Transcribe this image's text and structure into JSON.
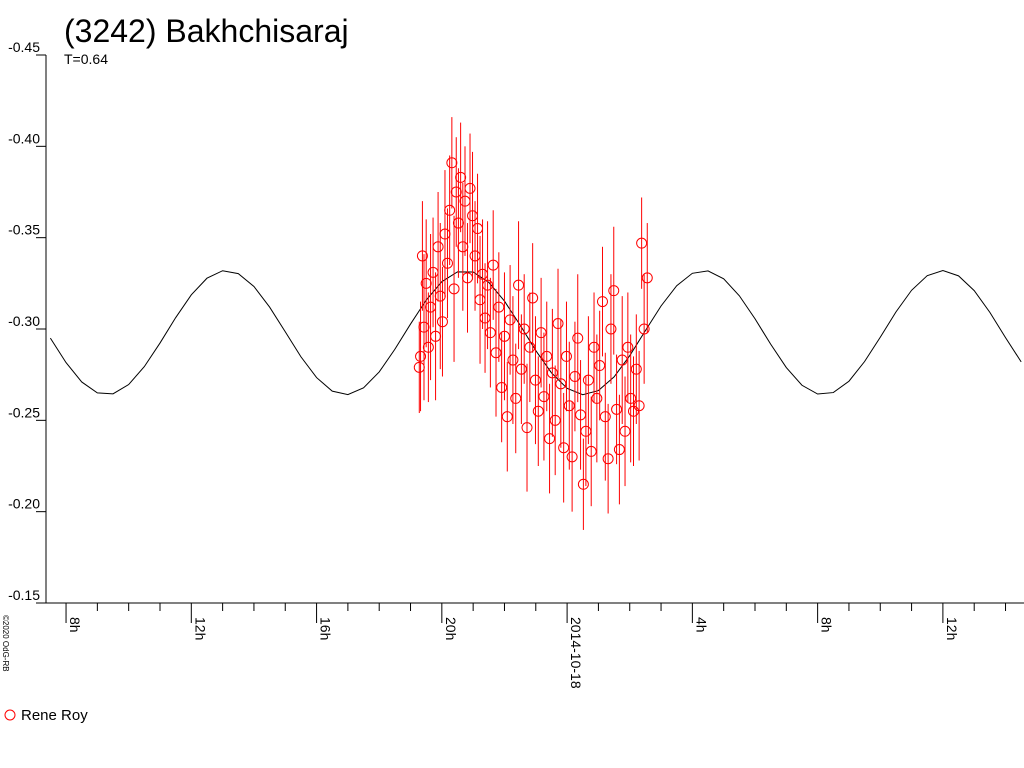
{
  "chart_data": {
    "type": "scatter",
    "title": "(3242) Bakhchisaraj",
    "subtitle": "T=0.64",
    "credit": "©2020 OdG-RB",
    "xlim": [
      -16.64,
      14.59
    ],
    "xticks": [
      {
        "value": -16,
        "label": "8h"
      },
      {
        "value": -12,
        "label": "12h"
      },
      {
        "value": -8,
        "label": "16h"
      },
      {
        "value": -4,
        "label": "20h"
      },
      {
        "value": 0,
        "label": "2014-10-18"
      },
      {
        "value": 4,
        "label": "4h"
      },
      {
        "value": 8,
        "label": "8h"
      },
      {
        "value": 12,
        "label": "12h"
      }
    ],
    "ylim": [
      -0.15,
      -0.45
    ],
    "yticks": [
      -0.45,
      {
        "value": -0.4,
        "label": "-0.40"
      },
      -0.35,
      {
        "value": -0.3,
        "label": "-0.30"
      },
      -0.25,
      {
        "value": -0.2,
        "label": "-0.20"
      },
      -0.15
    ],
    "model": {
      "color": "#000000",
      "x": [
        -16.5,
        -16,
        -15.5,
        -15,
        -14.5,
        -14,
        -13.5,
        -13,
        -12.5,
        -12,
        -11.5,
        -11,
        -10.5,
        -10,
        -9.5,
        -9,
        -8.5,
        -8,
        -7.5,
        -7,
        -6.5,
        -6,
        -5.5,
        -5,
        -4.5,
        -4,
        -3.5,
        -3,
        -2.5,
        -2,
        -1.5,
        -1,
        -0.5,
        0,
        0.5,
        1,
        1.5,
        2,
        2.5,
        3,
        3.5,
        4,
        4.5,
        5,
        5.5,
        6,
        6.5,
        7,
        7.5,
        8,
        8.5,
        9,
        9.5,
        10,
        10.5,
        11,
        11.5,
        12,
        12.5,
        13,
        13.5,
        14,
        14.5
      ],
      "values": [
        -0.295,
        -0.2816,
        -0.271,
        -0.265,
        -0.2645,
        -0.2696,
        -0.2794,
        -0.2923,
        -0.3062,
        -0.3187,
        -0.3278,
        -0.3319,
        -0.3303,
        -0.3233,
        -0.312,
        -0.2985,
        -0.2848,
        -0.2734,
        -0.266,
        -0.2641,
        -0.2678,
        -0.2765,
        -0.2889,
        -0.3027,
        -0.3158,
        -0.3259,
        -0.3313,
        -0.3312,
        -0.3255,
        -0.3153,
        -0.3021,
        -0.2882,
        -0.276,
        -0.2675,
        -0.264,
        -0.2663,
        -0.2738,
        -0.2854,
        -0.2991,
        -0.3126,
        -0.3237,
        -0.3305,
        -0.3318,
        -0.3275,
        -0.3182,
        -0.3056,
        -0.2917,
        -0.2789,
        -0.2692,
        -0.2644,
        -0.2652,
        -0.2714,
        -0.2822,
        -0.2955,
        -0.3093,
        -0.3212,
        -0.3292,
        -0.332,
        -0.3291,
        -0.321,
        -0.3091,
        -0.2953,
        -0.282
      ]
    },
    "series": [
      {
        "name": "Rene Roy",
        "color": "#ff0000",
        "x": [
          -4.72,
          -4.68,
          -4.62,
          -4.57,
          -4.5,
          -4.43,
          -4.36,
          -4.28,
          -4.2,
          -4.12,
          -4.05,
          -3.98,
          -3.9,
          -3.82,
          -3.75,
          -3.68,
          -3.61,
          -3.54,
          -3.47,
          -3.4,
          -3.33,
          -3.26,
          -3.18,
          -3.1,
          -3.02,
          -2.94,
          -2.86,
          -2.78,
          -2.7,
          -2.62,
          -2.54,
          -2.45,
          -2.36,
          -2.27,
          -2.18,
          -2.09,
          -2,
          -1.91,
          -1.82,
          -1.73,
          -1.64,
          -1.55,
          -1.46,
          -1.37,
          -1.28,
          -1.19,
          -1.1,
          -1.01,
          -0.92,
          -0.83,
          -0.74,
          -0.65,
          -0.56,
          -0.47,
          -0.38,
          -0.29,
          -0.2,
          -0.11,
          -0.02,
          0.07,
          0.16,
          0.25,
          0.34,
          0.43,
          0.52,
          0.6,
          0.68,
          0.77,
          0.86,
          0.95,
          1.04,
          1.13,
          1.22,
          1.31,
          1.4,
          1.49,
          1.58,
          1.67,
          1.76,
          1.85,
          1.94,
          2.03,
          2.12,
          2.21,
          2.3,
          2.38,
          2.46,
          2.56
        ],
        "values": [
          -0.279,
          -0.285,
          -0.34,
          -0.301,
          -0.325,
          -0.29,
          -0.312,
          -0.331,
          -0.296,
          -0.345,
          -0.318,
          -0.304,
          -0.352,
          -0.336,
          -0.365,
          -0.391,
          -0.322,
          -0.375,
          -0.358,
          -0.383,
          -0.345,
          -0.37,
          -0.328,
          -0.377,
          -0.362,
          -0.34,
          -0.355,
          -0.316,
          -0.33,
          -0.306,
          -0.324,
          -0.298,
          -0.335,
          -0.287,
          -0.312,
          -0.268,
          -0.296,
          -0.252,
          -0.305,
          -0.283,
          -0.262,
          -0.324,
          -0.278,
          -0.3,
          -0.246,
          -0.29,
          -0.317,
          -0.272,
          -0.255,
          -0.298,
          -0.263,
          -0.285,
          -0.24,
          -0.276,
          -0.25,
          -0.303,
          -0.27,
          -0.235,
          -0.285,
          -0.258,
          -0.23,
          -0.274,
          -0.295,
          -0.253,
          -0.215,
          -0.244,
          -0.272,
          -0.233,
          -0.29,
          -0.262,
          -0.28,
          -0.315,
          -0.252,
          -0.229,
          -0.3,
          -0.321,
          -0.256,
          -0.234,
          -0.283,
          -0.244,
          -0.29,
          -0.262,
          -0.255,
          -0.278,
          -0.258,
          -0.347,
          -0.3,
          -0.328
        ],
        "errors": [
          0.025,
          0.03,
          0.03,
          0.04,
          0.035,
          0.03,
          0.04,
          0.03,
          0.035,
          0.03,
          0.04,
          0.03,
          0.035,
          0.03,
          0.03,
          0.025,
          0.04,
          0.03,
          0.03,
          0.03,
          0.035,
          0.03,
          0.03,
          0.03,
          0.035,
          0.03,
          0.03,
          0.035,
          0.03,
          0.03,
          0.035,
          0.03,
          0.03,
          0.035,
          0.03,
          0.03,
          0.035,
          0.03,
          0.03,
          0.035,
          0.03,
          0.035,
          0.03,
          0.03,
          0.035,
          0.03,
          0.03,
          0.035,
          0.03,
          0.03,
          0.035,
          0.03,
          0.03,
          0.035,
          0.03,
          0.03,
          0.035,
          0.03,
          0.03,
          0.035,
          0.03,
          0.03,
          0.035,
          0.03,
          0.025,
          0.03,
          0.035,
          0.03,
          0.03,
          0.035,
          0.03,
          0.03,
          0.035,
          0.03,
          0.03,
          0.035,
          0.03,
          0.03,
          0.035,
          0.03,
          0.03,
          0.035,
          0.03,
          0.03,
          0.03,
          0.025,
          0.03,
          0.03
        ]
      }
    ]
  }
}
